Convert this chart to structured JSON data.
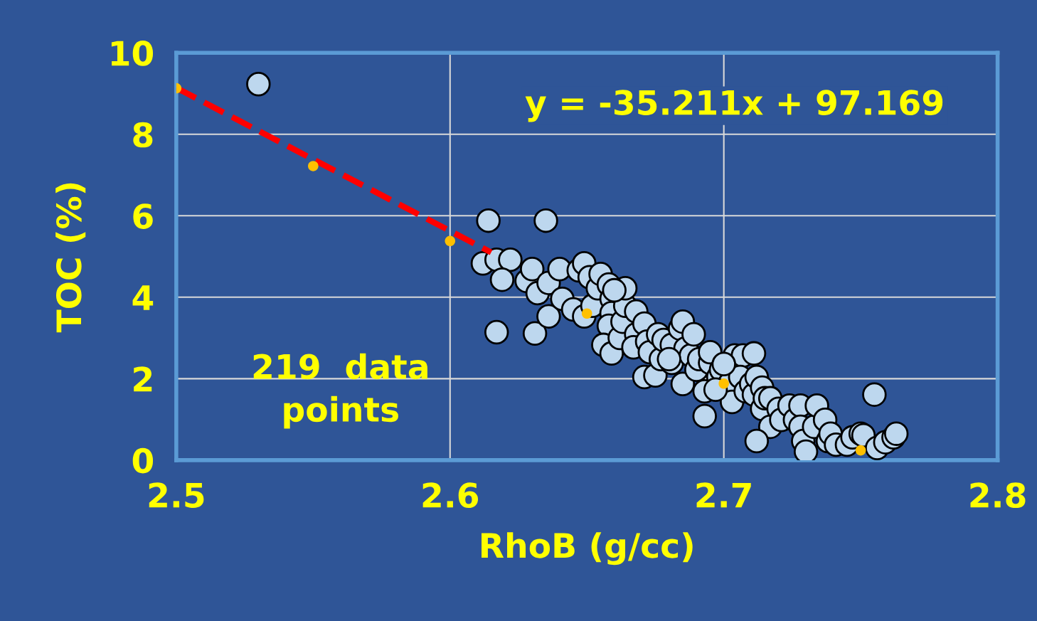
{
  "chart_data": {
    "type": "scatter",
    "xlabel": "RhoB (g/cc)",
    "ylabel": "TOC (%)",
    "xlim": [
      2.5,
      2.8
    ],
    "ylim": [
      0,
      10
    ],
    "xticks": [
      2.5,
      2.6,
      2.7,
      2.8
    ],
    "yticks": [
      0,
      2,
      4,
      6,
      8,
      10
    ],
    "grid": true,
    "legend": false,
    "annotations": [
      "y = -35.211x + 97.169",
      "219  data\npoints"
    ],
    "series": [
      {
        "marker": "circle",
        "color": "#bdd7ee",
        "x": [
          2.53,
          2.614,
          2.635,
          2.612,
          2.617,
          2.622,
          2.619,
          2.617,
          2.631,
          2.628,
          2.63,
          2.632,
          2.636,
          2.636,
          2.641,
          2.64,
          2.645,
          2.647,
          2.649,
          2.651,
          2.649,
          2.652,
          2.654,
          2.655,
          2.658,
          2.659,
          2.659,
          2.658,
          2.656,
          2.659,
          2.662,
          2.663,
          2.664,
          2.668,
          2.668,
          2.667,
          2.671,
          2.672,
          2.671,
          2.675,
          2.673,
          2.676,
          2.677,
          2.678,
          2.681,
          2.684,
          2.681,
          2.685,
          2.686,
          2.688,
          2.69,
          2.691,
          2.693,
          2.693,
          2.695,
          2.695,
          2.698,
          2.699,
          2.702,
          2.703,
          2.704,
          2.707,
          2.706,
          2.708,
          2.71,
          2.711,
          2.712,
          2.714,
          2.714,
          2.715,
          2.717,
          2.717,
          2.712,
          2.72,
          2.721,
          2.724,
          2.726,
          2.728,
          2.728,
          2.729,
          2.73,
          2.733,
          2.734,
          2.737,
          2.738,
          2.739,
          2.741,
          2.745,
          2.747,
          2.75,
          2.751,
          2.755,
          2.756,
          2.759,
          2.762,
          2.763,
          2.711,
          2.7,
          2.697,
          2.68,
          2.685,
          2.689,
          2.664,
          2.66
        ],
        "values": [
          9.23,
          5.88,
          5.88,
          4.83,
          4.92,
          4.92,
          4.43,
          3.14,
          3.11,
          4.4,
          4.69,
          4.1,
          4.35,
          3.53,
          3.96,
          4.69,
          3.7,
          4.66,
          4.83,
          4.49,
          3.53,
          3.79,
          4.22,
          4.57,
          4.31,
          3.96,
          3.61,
          3.3,
          2.83,
          2.62,
          3.0,
          3.4,
          3.79,
          3.65,
          3.09,
          2.77,
          3.35,
          2.91,
          2.04,
          2.08,
          2.65,
          3.09,
          2.48,
          2.95,
          2.83,
          3.23,
          2.39,
          1.87,
          2.74,
          2.57,
          2.22,
          2.48,
          1.69,
          1.08,
          2.39,
          2.65,
          2.04,
          2.22,
          1.87,
          1.43,
          2.57,
          2.57,
          2.04,
          1.69,
          1.87,
          1.61,
          2.04,
          1.26,
          1.78,
          1.52,
          1.52,
          0.82,
          0.47,
          1.26,
          0.99,
          1.34,
          0.99,
          1.34,
          0.82,
          0.47,
          0.21,
          0.82,
          1.34,
          0.99,
          0.47,
          0.65,
          0.38,
          0.38,
          0.56,
          0.65,
          0.61,
          1.61,
          0.3,
          0.44,
          0.56,
          0.65,
          2.62,
          2.36,
          1.73,
          2.48,
          3.4,
          3.09,
          4.22,
          4.17
        ]
      },
      {
        "type": "line",
        "color": "#ff0000",
        "line_style": "dashed",
        "x": [
          2.5,
          2.615
        ],
        "values": [
          9.14,
          5.1
        ]
      },
      {
        "type": "scatter",
        "color": "#ffc000",
        "marker": "circle",
        "x": [
          2.5,
          2.55,
          2.6,
          2.65,
          2.7,
          2.75
        ],
        "values": [
          9.13,
          7.22,
          5.38,
          3.6,
          1.88,
          0.24
        ]
      }
    ]
  }
}
